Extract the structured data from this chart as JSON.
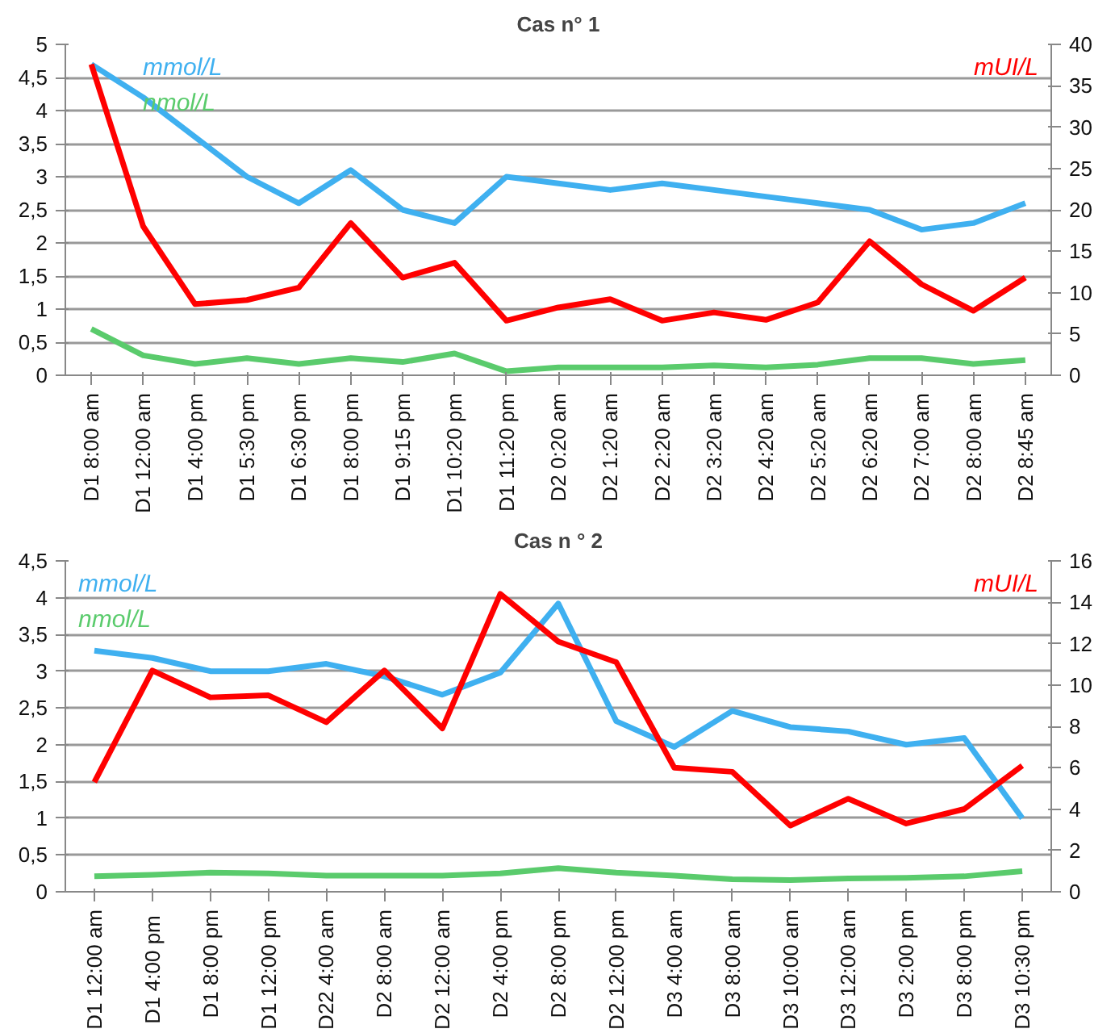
{
  "chart_data": [
    {
      "type": "line",
      "title": "Cas n° 1",
      "categories": [
        "D1 8:00 am",
        "D1 12:00 am",
        "D1 4:00 pm",
        "D1 5:30 pm",
        "D1 6:30 pm",
        "D1 8:00 pm",
        "D1 9:15 pm",
        "D1 10:20 pm",
        "D1 11:20 pm",
        "D2 0:20 am",
        "D2 1:20 am",
        "D2 2:20 am",
        "D2 3:20 am",
        "D2 4:20 am",
        "D2 5:20 am",
        "D2 6:20 am",
        "D2 7:00 am",
        "D2 8:00 am",
        "D2 8:45 am"
      ],
      "series": [
        {
          "name": "mmol/L",
          "color": "#3fb0f0",
          "values": [
            4.7,
            4.2,
            3.6,
            3.0,
            2.6,
            3.1,
            2.5,
            2.3,
            3.0,
            2.9,
            2.8,
            2.9,
            2.8,
            2.7,
            2.6,
            2.5,
            2.2,
            2.3,
            2.6
          ]
        },
        {
          "name": "nmol/L",
          "color": "#5acb6c",
          "values": [
            0.7,
            0.3,
            0.17,
            0.26,
            0.17,
            0.26,
            0.2,
            0.33,
            0.06,
            0.12,
            0.12,
            0.12,
            0.15,
            0.12,
            0.16,
            0.26,
            0.26,
            0.17,
            0.23
          ]
        },
        {
          "name": "mUI/L",
          "color": "#ff0000",
          "axis": "y2",
          "values": [
            37.6,
            18,
            8.6,
            9.1,
            10.6,
            18.4,
            11.8,
            13.6,
            6.6,
            8.2,
            9.2,
            6.6,
            7.6,
            6.7,
            8.8,
            16.2,
            11,
            7.8,
            11.8
          ]
        }
      ],
      "ylim": [
        0,
        5
      ],
      "yticks": [
        0,
        {
          "value": 0.5,
          "label": "0,5"
        },
        1,
        {
          "value": 1.5,
          "label": "1,5"
        },
        2,
        {
          "value": 2.5,
          "label": "2,5"
        },
        3,
        {
          "value": 3.5,
          "label": "3,5"
        },
        4,
        {
          "value": 4.5,
          "label": "4,5"
        },
        5
      ],
      "y2lim": [
        0,
        40
      ],
      "y2ticks": [
        0,
        5,
        10,
        15,
        20,
        25,
        30,
        35,
        40
      ],
      "grid": "y"
    },
    {
      "type": "line",
      "title": "Cas n ° 2",
      "categories": [
        "D1 12:00 am",
        "D1  4:00 pm",
        "D1 8:00 pm",
        "D1 12:00 pm",
        "D22 4:00 am",
        "D2 8:00 am",
        "D2 12:00 am",
        "D2 4:00 pm",
        "D2 8:00 pm",
        "D2 12:00 pm",
        "D3 4:00 am",
        "D3 8:00 am",
        "D3 10:00 am",
        "D3 12:00 am",
        "D3 2:00 pm",
        "D3 8:00 pm",
        "D3 10:30 pm"
      ],
      "series": [
        {
          "name": "mmol/L",
          "color": "#3fb0f0",
          "values": [
            3.28,
            3.18,
            3.0,
            3.0,
            3.1,
            2.93,
            2.68,
            2.98,
            3.92,
            2.32,
            1.97,
            2.46,
            2.24,
            2.18,
            2.0,
            2.09,
            1.0
          ]
        },
        {
          "name": "nmol/L",
          "color": "#5acb6c",
          "values": [
            0.21,
            0.23,
            0.26,
            0.25,
            0.22,
            0.22,
            0.22,
            0.25,
            0.32,
            0.26,
            0.22,
            0.17,
            0.16,
            0.18,
            0.19,
            0.21,
            0.28
          ]
        },
        {
          "name": "mUI/L",
          "color": "#ff0000",
          "axis": "y2",
          "values": [
            5.3,
            10.7,
            9.4,
            9.5,
            8.2,
            10.7,
            7.9,
            14.4,
            12.1,
            11.1,
            6.0,
            5.8,
            3.2,
            4.5,
            3.3,
            4.0,
            6.1
          ]
        }
      ],
      "ylim": [
        0,
        4.5
      ],
      "yticks": [
        0,
        {
          "value": 0.5,
          "label": "0,5"
        },
        1,
        {
          "value": 1.5,
          "label": "1,5"
        },
        2,
        {
          "value": 2.5,
          "label": "2,5"
        },
        3,
        {
          "value": 3.5,
          "label": "3,5"
        },
        4,
        {
          "value": 4.5,
          "label": "4,5"
        }
      ],
      "y2lim": [
        0,
        16
      ],
      "y2ticks": [
        0,
        2,
        4,
        6,
        8,
        10,
        12,
        14,
        16
      ],
      "grid": "y"
    }
  ]
}
